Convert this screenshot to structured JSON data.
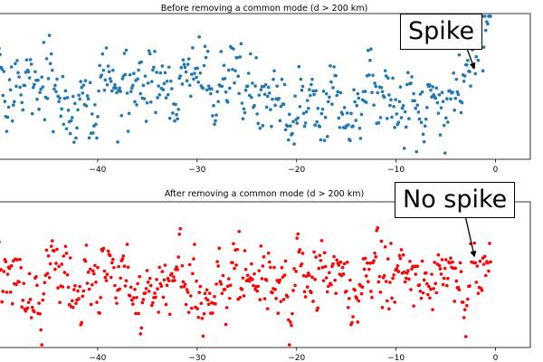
{
  "chart_data": [
    {
      "type": "scatter",
      "title": "Before removing a common mode (d > 200 km)",
      "xlabel": "",
      "ylabel": "",
      "xlim": [
        -50,
        3.5
      ],
      "ylim": [
        -2.5,
        3.0
      ],
      "xticks": [
        -40,
        -30,
        -20,
        -10,
        0
      ],
      "xtick_labels": [
        "−40",
        "−30",
        "−20",
        "−10",
        "0"
      ],
      "grid": false,
      "color": "#1f77b4",
      "annotation": {
        "text": "Spike",
        "point": [
          -2.1,
          0.9
        ]
      },
      "seed": 7,
      "points": 520,
      "x_range": [
        -50,
        -0.5
      ],
      "noise_sd": 0.55,
      "spike": {
        "start": -3.0,
        "height": 2.2
      }
    },
    {
      "type": "scatter",
      "title": "After removing a common mode (d > 200 km)",
      "xlabel": "",
      "ylabel": "",
      "xlim": [
        -50,
        3.5
      ],
      "ylim": [
        -2.5,
        3.0
      ],
      "xticks": [
        -40,
        -30,
        -20,
        -10,
        0
      ],
      "xtick_labels": [
        "−40",
        "−30",
        "−20",
        "−10",
        "0"
      ],
      "grid": false,
      "color": "#ff0000",
      "annotation": {
        "text": "No spike",
        "point": [
          -2.1,
          0.9
        ]
      },
      "seed": 19,
      "points": 520,
      "x_range": [
        -50,
        -0.5
      ],
      "noise_sd": 0.55,
      "spike": {
        "start": -3.0,
        "height": 0.0
      }
    }
  ]
}
